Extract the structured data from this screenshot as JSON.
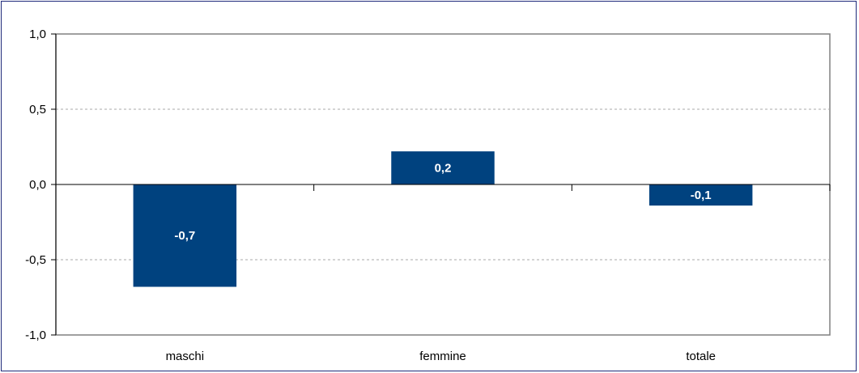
{
  "chart_data": {
    "type": "bar",
    "categories": [
      "maschi",
      "femmine",
      "totale"
    ],
    "values": [
      -0.68,
      0.22,
      -0.14
    ],
    "data_labels": [
      "-0,7",
      "0,2",
      "-0,1"
    ],
    "ylim": [
      -1.0,
      1.0
    ],
    "yticks": [
      1.0,
      0.5,
      0.0,
      -0.5,
      -1.0
    ],
    "ytick_labels": [
      "1,0",
      "0,5",
      "0,0",
      "-0,5",
      "-1,0"
    ],
    "grid": true,
    "legend": "none",
    "bar_color": "#00427f",
    "grid_color": "#aaaaaa",
    "border_color": "#1f2a7a"
  }
}
